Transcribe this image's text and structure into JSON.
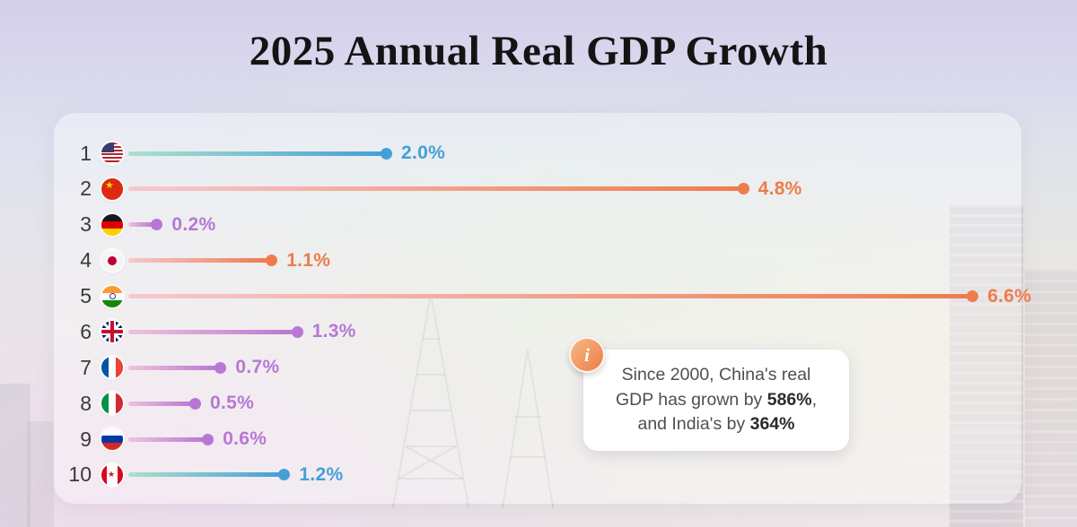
{
  "title": "2025 Annual Real GDP Growth",
  "chart_data": {
    "type": "bar",
    "orientation": "horizontal",
    "unit": "%",
    "xlim": [
      0,
      6.9
    ],
    "categories": [
      "United States",
      "China",
      "Germany",
      "Japan",
      "India",
      "United Kingdom",
      "France",
      "Italy",
      "Russia",
      "Canada"
    ],
    "values": [
      2.0,
      4.8,
      0.2,
      1.1,
      6.6,
      1.3,
      0.7,
      0.5,
      0.6,
      1.2
    ],
    "rows": [
      {
        "rank": "1",
        "flag": "us",
        "country": "United States",
        "group": "americas",
        "value": 2.0,
        "label": "2.0%"
      },
      {
        "rank": "2",
        "flag": "cn",
        "country": "China",
        "group": "asia",
        "value": 4.8,
        "label": "4.8%"
      },
      {
        "rank": "3",
        "flag": "de",
        "country": "Germany",
        "group": "europe",
        "value": 0.2,
        "label": "0.2%"
      },
      {
        "rank": "4",
        "flag": "jp",
        "country": "Japan",
        "group": "asia",
        "value": 1.1,
        "label": "1.1%"
      },
      {
        "rank": "5",
        "flag": "in",
        "country": "India",
        "group": "asia",
        "value": 6.6,
        "label": "6.6%"
      },
      {
        "rank": "6",
        "flag": "gb",
        "country": "United Kingdom",
        "group": "europe",
        "value": 1.3,
        "label": "1.3%"
      },
      {
        "rank": "7",
        "flag": "fr",
        "country": "France",
        "group": "europe",
        "value": 0.7,
        "label": "0.7%"
      },
      {
        "rank": "8",
        "flag": "it",
        "country": "Italy",
        "group": "europe",
        "value": 0.5,
        "label": "0.5%"
      },
      {
        "rank": "9",
        "flag": "ru",
        "country": "Russia",
        "group": "europe",
        "value": 0.6,
        "label": "0.6%"
      },
      {
        "rank": "10",
        "flag": "ca",
        "country": "Canada",
        "group": "americas",
        "value": 1.2,
        "label": "1.2%"
      }
    ]
  },
  "colors": {
    "americas": {
      "dot": "#459fd7",
      "line_start": "#a9e2cb"
    },
    "asia": {
      "dot": "#ee7c4d",
      "line_start": "#f6c9cf"
    },
    "europe": {
      "dot": "#b678d4",
      "line_start": "#f0c3da"
    }
  },
  "callout": {
    "icon": "info-icon",
    "icon_glyph": "i",
    "text_parts": [
      {
        "text": "Since 2000, China's real GDP has grown by ",
        "bold": false
      },
      {
        "text": "586%",
        "bold": true
      },
      {
        "text": ", and India's by ",
        "bold": false
      },
      {
        "text": "364%",
        "bold": true
      }
    ]
  }
}
